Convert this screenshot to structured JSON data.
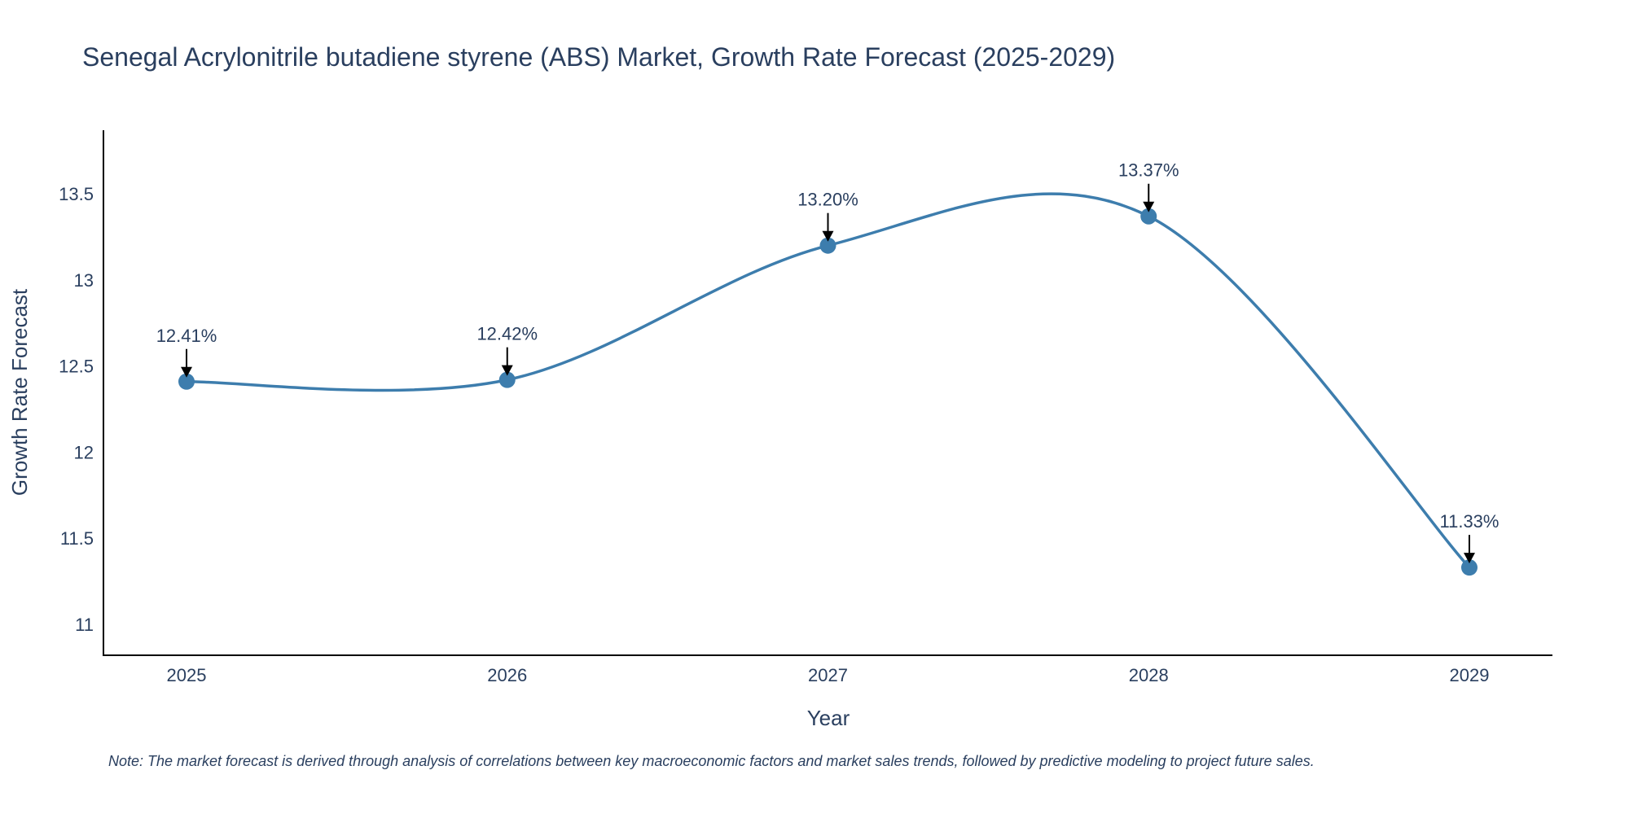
{
  "chart_data": {
    "type": "line",
    "title": "Senegal Acrylonitrile butadiene styrene (ABS) Market, Growth Rate Forecast (2025-2029)",
    "xlabel": "Year",
    "ylabel": "Growth Rate Forecast",
    "categories": [
      "2025",
      "2026",
      "2027",
      "2028",
      "2029"
    ],
    "series": [
      {
        "name": "Growth Rate Forecast",
        "values": [
          12.41,
          12.42,
          13.2,
          13.37,
          11.33
        ],
        "labels": [
          "12.41%",
          "12.42%",
          "13.20%",
          "13.37%",
          "11.33%"
        ]
      }
    ],
    "ylim": [
      10.82,
      13.87
    ],
    "yticks": [
      11,
      11.5,
      12,
      12.5,
      13,
      13.5
    ],
    "ytick_labels": [
      "11",
      "11.5",
      "12",
      "12.5",
      "13",
      "13.5"
    ],
    "grid": false,
    "line_shape": "spline",
    "line_color": "#3d7dad",
    "marker_color": "#3d7dad",
    "axis_color": "#000000",
    "text_color": "#2a3f5f",
    "note": "Note: The market forecast is derived through analysis of correlations between key macroeconomic factors and market sales trends, followed by predictive modeling to project future sales."
  }
}
